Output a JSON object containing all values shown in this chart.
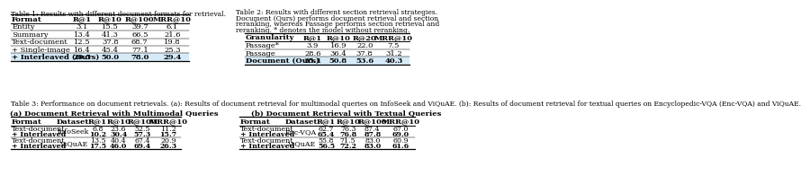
{
  "bg_color": "#ffffff",
  "text_color": "#000000",
  "highlight_color": "#d6eaf8",
  "fs": 6.0,
  "cap_fs": 5.8,
  "table1": {
    "caption": "Table 1: Results with different document formats for retrieval.",
    "headers": [
      "Format",
      "R@1",
      "R@10",
      "R@100",
      "MRR@10"
    ],
    "rows": [
      [
        "Entity",
        "3.1",
        "15.5",
        "39.7",
        "6.1"
      ],
      [
        "Summary",
        "13.4",
        "41.3",
        "66.5",
        "21.6"
      ],
      [
        "Text-document",
        "12.5",
        "37.8",
        "68.7",
        "19.8"
      ],
      [
        "+ Single-image",
        "16.4",
        "45.4",
        "77.1",
        "25.3"
      ],
      [
        "+ Interleaved (Ours)",
        "20.5",
        "50.0",
        "78.0",
        "29.4"
      ]
    ],
    "bold_rows": [
      4
    ],
    "highlight_rows": [
      4
    ]
  },
  "table2": {
    "caption_lines": [
      "Table 2: Results with different section retrieval strategies.",
      "Document (Ours) performs document retrieval and section",
      "reranking, whereas Passage performs section retrieval and",
      "reranking. * denotes the model without reranking."
    ],
    "headers": [
      "Granularity",
      "R@1",
      "R@10",
      "R@20",
      "MRR@10"
    ],
    "rows": [
      [
        "Passage*",
        "3.9",
        "16.9",
        "22.0",
        "7.5"
      ],
      [
        "Passage",
        "28.6",
        "36.4",
        "37.8",
        "31.2"
      ],
      [
        "Document (Ours)",
        "35.1",
        "50.8",
        "53.6",
        "40.3"
      ]
    ],
    "bold_rows": [
      2
    ],
    "highlight_rows": [
      2
    ]
  },
  "table3_caption": "Table 3: Performance on document retrievals. (a): Results of document retrieval for multimodal queries on InfoSeek and ViQuAE. (b): Results of document retrieval for textual queries on Encyclopedic-VQA (Enc-VQA) and ViQuAE.",
  "table3a": {
    "subtitle": "(a) Document Retrieval with Multimodal Queries",
    "headers": [
      "Format",
      "Dataset",
      "R@1",
      "R@10",
      "R@100",
      "MRR@10"
    ],
    "rows": [
      [
        "Text-document\n+ Interleaved",
        "InfoSeek",
        "6.8\n10.2",
        "23.6\n30.4",
        "52.5\n57.3",
        "11.2\n15.7"
      ],
      [
        "Text-document\n+ Interleaved",
        "ViQuAE",
        "13.5\n17.5",
        "40.4\n46.0",
        "67.4\n69.4",
        "20.9\n26.3"
      ]
    ]
  },
  "table3b": {
    "subtitle": "(b) Document Retrieval with Textual Queries",
    "headers": [
      "Format",
      "Dataset",
      "R@1",
      "R@10",
      "R@100",
      "MRR@10"
    ],
    "rows": [
      [
        "Text-document\n+ Interleaved",
        "Enc-VQA",
        "62.7\n65.4",
        "76.3\n76.8",
        "87.4\n87.8",
        "67.0\n69.0"
      ],
      [
        "Text-document\n+ Interleaved",
        "ViQuAE",
        "55.8\n56.5",
        "71.5\n72.2",
        "83.0\n83.0",
        "60.9\n61.6"
      ]
    ]
  }
}
